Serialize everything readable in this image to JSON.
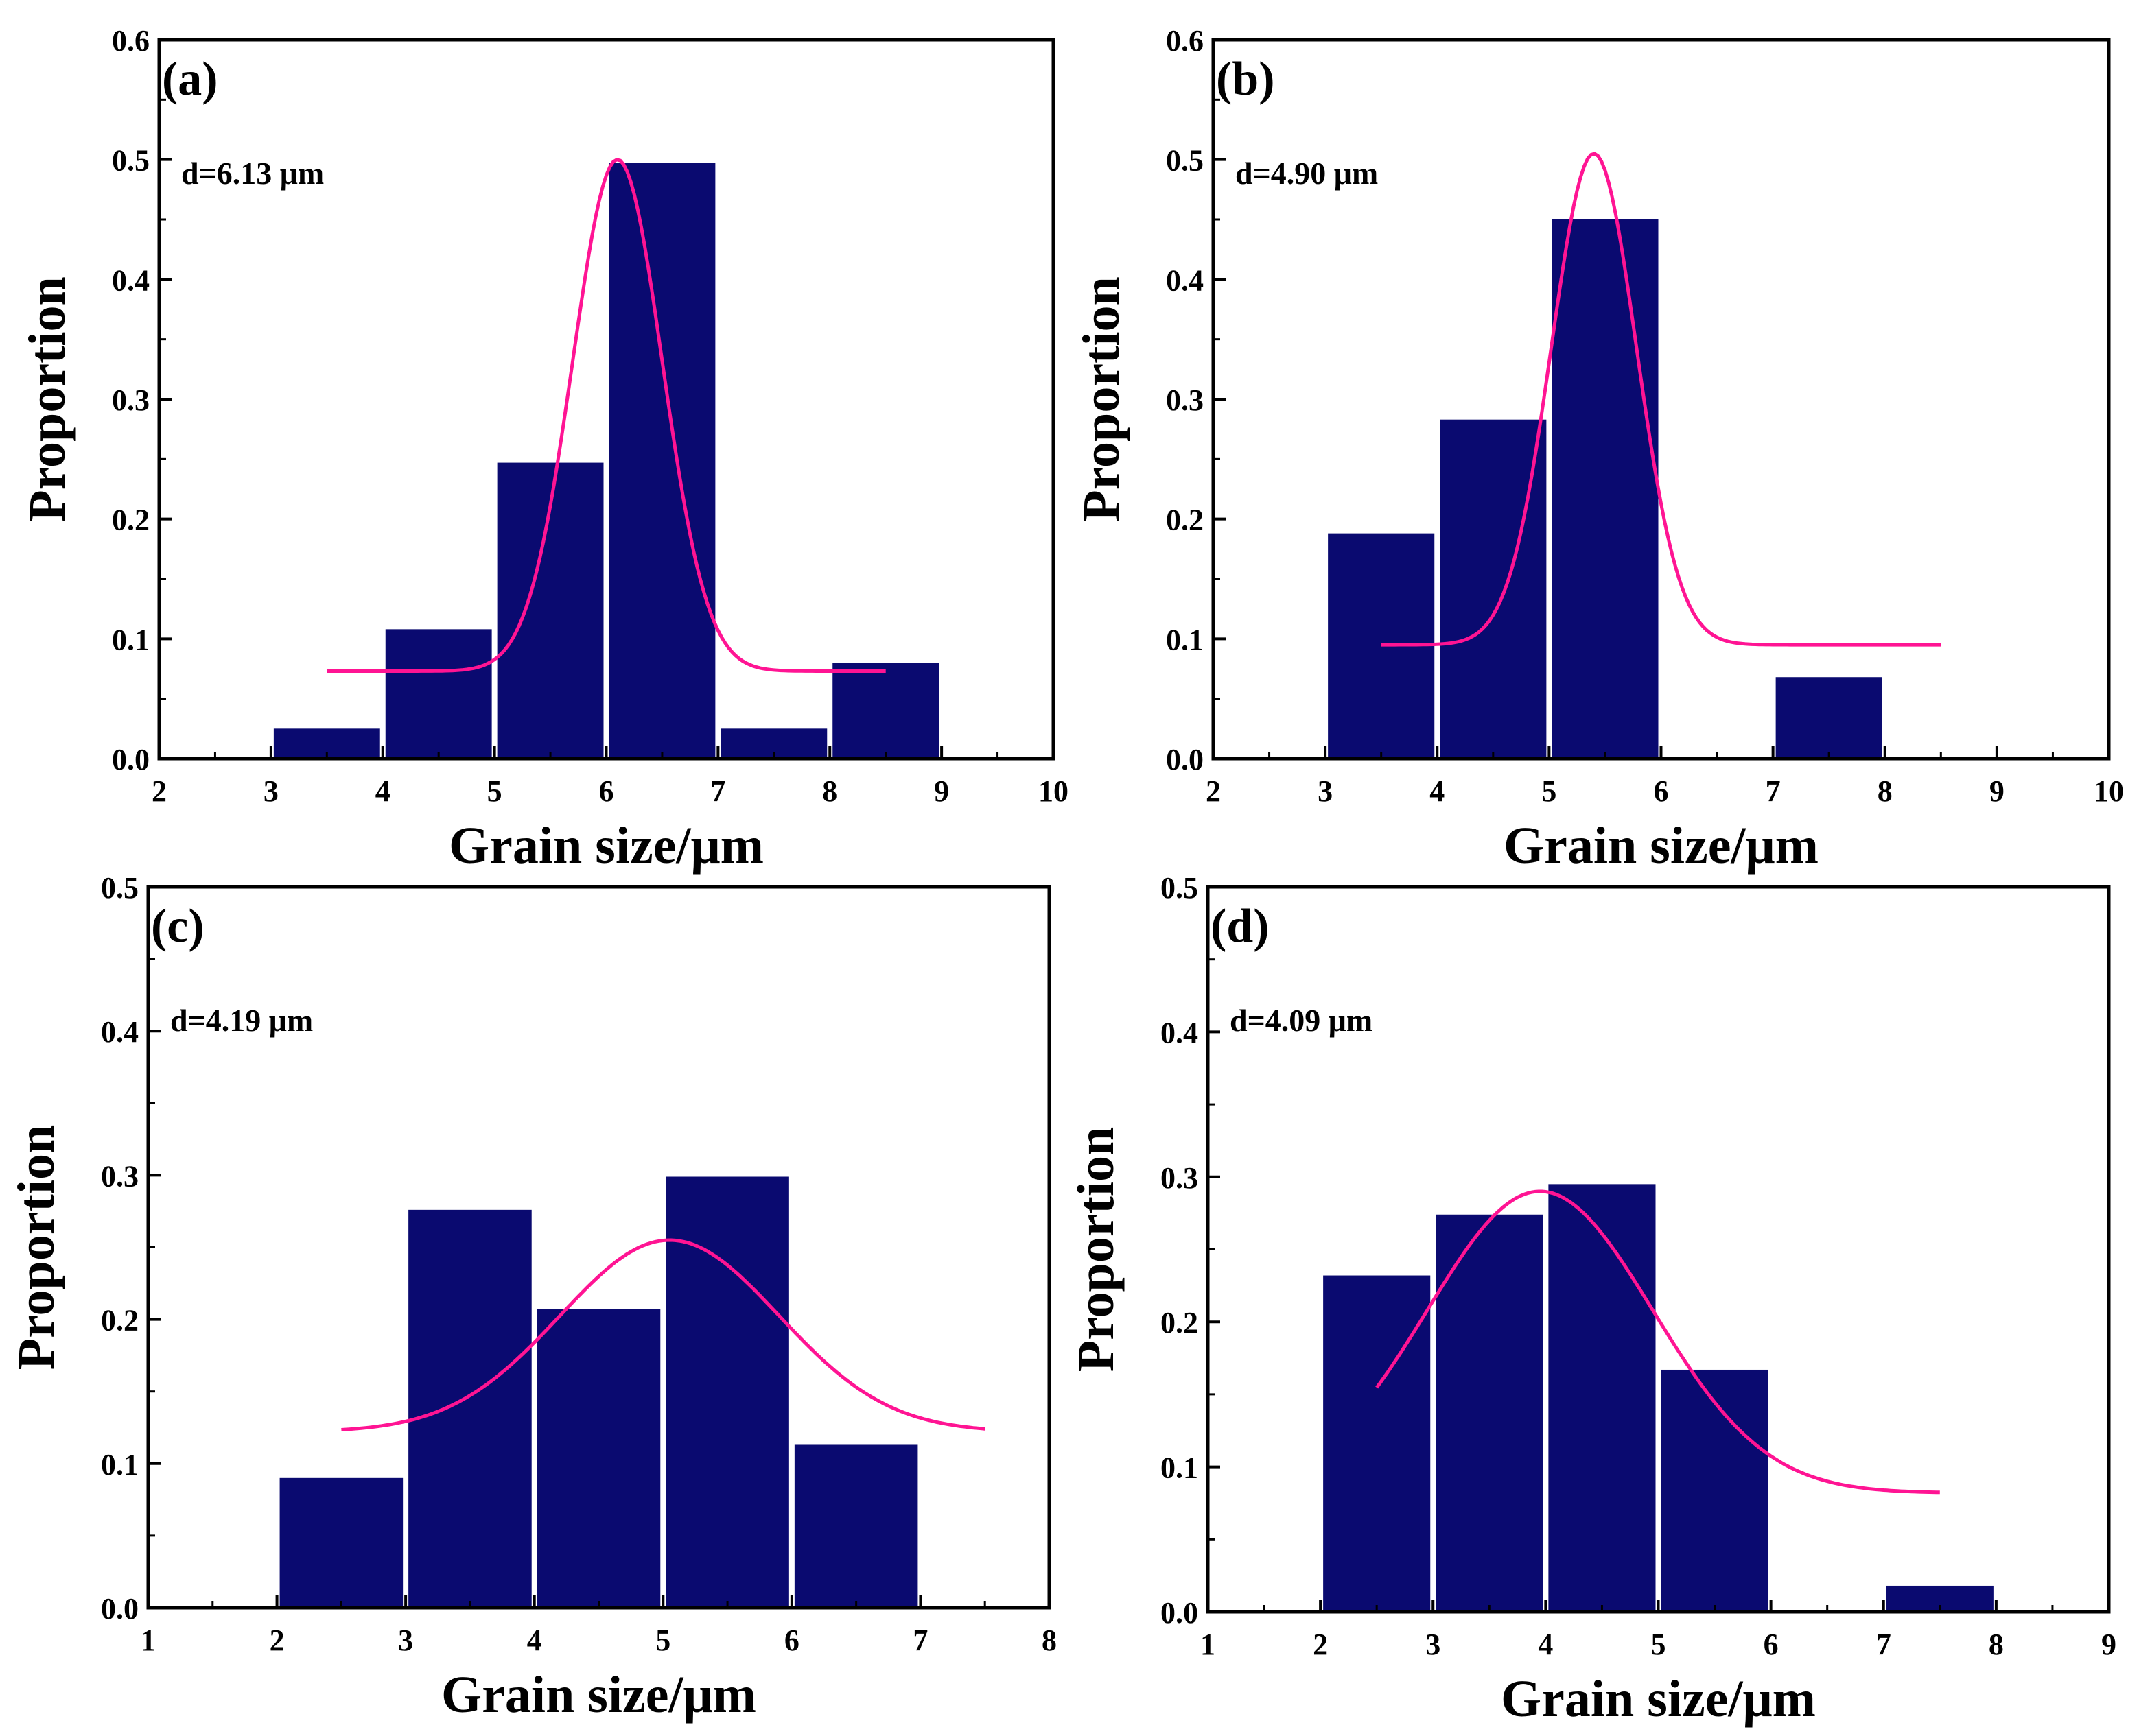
{
  "figure": {
    "panels": [
      "a",
      "b",
      "c",
      "d"
    ]
  },
  "colors": {
    "bar": "#0a0a70",
    "fit_curve": "#ff1493",
    "axis": "#000000"
  },
  "chart_data": [
    {
      "id": "a",
      "type": "bar",
      "panel_label": "(a)",
      "annotation": "d=6.13 μm",
      "xlabel": "Grain size/μm",
      "ylabel": "Proportion",
      "xlim": [
        2,
        10
      ],
      "ylim": [
        0,
        0.6
      ],
      "xticks": [
        2,
        3,
        4,
        5,
        6,
        7,
        8,
        9,
        10
      ],
      "xtick_labels": [
        "2",
        "3",
        "4",
        "5",
        "6",
        "7",
        "8",
        "9",
        "10"
      ],
      "yticks": [
        0,
        0.1,
        0.2,
        0.3,
        0.4,
        0.5,
        0.6
      ],
      "ytick_labels": [
        "0.0",
        "0.1",
        "0.2",
        "0.3",
        "0.4",
        "0.5",
        "0.6"
      ],
      "bins": [
        [
          3,
          4
        ],
        [
          4,
          5
        ],
        [
          5,
          6
        ],
        [
          6,
          7
        ],
        [
          7,
          8
        ],
        [
          8,
          9
        ]
      ],
      "values": [
        0.025,
        0.108,
        0.247,
        0.497,
        0.025,
        0.08
      ],
      "fit": {
        "type": "gaussian",
        "x_range": [
          3.5,
          8.5
        ],
        "baseline": 0.073,
        "peak": 0.5,
        "center": 6.1,
        "sigma": 0.4
      }
    },
    {
      "id": "b",
      "type": "bar",
      "panel_label": "(b)",
      "annotation": "d=4.90 μm",
      "xlabel": "Grain size/μm",
      "ylabel": "Proportion",
      "xlim": [
        2,
        10
      ],
      "ylim": [
        0,
        0.6
      ],
      "xticks": [
        2,
        3,
        4,
        5,
        6,
        7,
        8,
        9,
        10
      ],
      "xtick_labels": [
        "2",
        "3",
        "4",
        "5",
        "6",
        "7",
        "8",
        "9",
        "10"
      ],
      "yticks": [
        0,
        0.1,
        0.2,
        0.3,
        0.4,
        0.5,
        0.6
      ],
      "ytick_labels": [
        "0.0",
        "0.1",
        "0.2",
        "0.3",
        "0.4",
        "0.5",
        "0.6"
      ],
      "bins": [
        [
          3,
          4
        ],
        [
          4,
          5
        ],
        [
          5,
          6
        ],
        [
          7,
          8
        ]
      ],
      "values": [
        0.188,
        0.283,
        0.45,
        0.068
      ],
      "fit": {
        "type": "gaussian",
        "x_range": [
          3.5,
          8.5
        ],
        "baseline": 0.095,
        "peak": 0.505,
        "center": 5.4,
        "sigma": 0.38
      }
    },
    {
      "id": "c",
      "type": "bar",
      "panel_label": "(c)",
      "annotation": "d=4.19 μm",
      "xlabel": "Grain size/μm",
      "ylabel": "Proportion",
      "xlim": [
        1,
        8
      ],
      "ylim": [
        0,
        0.5
      ],
      "xticks": [
        1,
        2,
        3,
        4,
        5,
        6,
        7,
        8
      ],
      "xtick_labels": [
        "1",
        "2",
        "3",
        "4",
        "5",
        "6",
        "7",
        "8"
      ],
      "yticks": [
        0,
        0.1,
        0.2,
        0.3,
        0.4,
        0.5
      ],
      "ytick_labels": [
        "0.0",
        "0.1",
        "0.2",
        "0.3",
        "0.4",
        "0.5"
      ],
      "bins": [
        [
          2,
          3
        ],
        [
          3,
          4
        ],
        [
          4,
          5
        ],
        [
          5,
          6
        ],
        [
          6,
          7
        ]
      ],
      "values": [
        0.09,
        0.276,
        0.207,
        0.299,
        0.113
      ],
      "fit": {
        "type": "gaussian",
        "x_range": [
          2.5,
          7.5
        ],
        "baseline": 0.122,
        "peak": 0.255,
        "center": 5.05,
        "sigma": 0.85
      }
    },
    {
      "id": "d",
      "type": "bar",
      "panel_label": "(d)",
      "annotation": "d=4.09 μm",
      "xlabel": "Grain size/μm",
      "ylabel": "Proportion",
      "xlim": [
        1,
        9
      ],
      "ylim": [
        0,
        0.5
      ],
      "xticks": [
        1,
        2,
        3,
        4,
        5,
        6,
        7,
        8,
        9
      ],
      "xtick_labels": [
        "1",
        "2",
        "3",
        "4",
        "5",
        "6",
        "7",
        "8",
        "9"
      ],
      "yticks": [
        0,
        0.1,
        0.2,
        0.3,
        0.4,
        0.5
      ],
      "ytick_labels": [
        "0.0",
        "0.1",
        "0.2",
        "0.3",
        "0.4",
        "0.5"
      ],
      "bins": [
        [
          2,
          3
        ],
        [
          3,
          4
        ],
        [
          4,
          5
        ],
        [
          5,
          6
        ],
        [
          7,
          8
        ]
      ],
      "values": [
        0.232,
        0.274,
        0.295,
        0.167,
        0.018
      ],
      "fit": {
        "type": "gaussian",
        "x_range": [
          2.5,
          7.5
        ],
        "baseline": 0.082,
        "peak": 0.29,
        "center": 3.95,
        "sigma": 1.0
      }
    }
  ]
}
